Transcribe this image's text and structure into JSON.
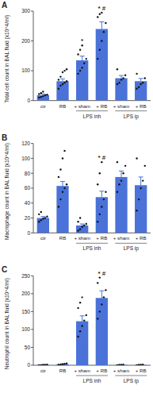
{
  "chart_data": [
    {
      "type": "bar",
      "title": "A",
      "y_label": "Total cell count in BAL fluid (x10^4/ml)",
      "categories": [
        "ctr",
        "RB",
        "+ sham",
        "+ RB",
        "+ sham",
        "+ RB"
      ],
      "group_labels": [
        null,
        null,
        "LPS inh",
        "LPS inh",
        "LPS ip",
        "LPS ip"
      ],
      "values": [
        18,
        65,
        135,
        240,
        75,
        65
      ],
      "errors": [
        4,
        8,
        14,
        24,
        9,
        9
      ],
      "points": [
        [
          10,
          12,
          15,
          18,
          20,
          22,
          25,
          30
        ],
        [
          40,
          50,
          55,
          60,
          65,
          70,
          80,
          95,
          100,
          105
        ],
        [
          90,
          100,
          110,
          125,
          140,
          155,
          170,
          185
        ],
        [
          140,
          170,
          200,
          230,
          260,
          280,
          290,
          295
        ],
        [
          55,
          60,
          70,
          75,
          85,
          105
        ],
        [
          40,
          45,
          55,
          60,
          75,
          90
        ]
      ],
      "significance": [
        null,
        null,
        "*",
        "* #",
        null,
        null
      ],
      "color": "#4a72d8",
      "ylim": [
        0,
        300
      ],
      "yticks": [
        0,
        100,
        200,
        300
      ]
    },
    {
      "type": "bar",
      "title": "B",
      "y_label": "Macrophage count in BAL fluid (x10^4/ml)",
      "categories": [
        "ctr",
        "RB",
        "+ sham",
        "+ RB",
        "+ sham",
        "+ RB"
      ],
      "group_labels": [
        null,
        null,
        "LPS inh",
        "LPS inh",
        "LPS ip",
        "LPS ip"
      ],
      "values": [
        20,
        63,
        10,
        48,
        75,
        64
      ],
      "errors": [
        2,
        6,
        2,
        8,
        8,
        11
      ],
      "points": [
        [
          15,
          17,
          19,
          20,
          22,
          25,
          28
        ],
        [
          35,
          45,
          55,
          60,
          65,
          75,
          85,
          100,
          110
        ],
        [
          3,
          5,
          8,
          10,
          12,
          15,
          20
        ],
        [
          15,
          25,
          35,
          45,
          55,
          65,
          80,
          95
        ],
        [
          55,
          65,
          70,
          80,
          90,
          95
        ],
        [
          30,
          45,
          60,
          70,
          90,
          100
        ]
      ],
      "significance": [
        null,
        null,
        null,
        "* #",
        null,
        null
      ],
      "color": "#4a72d8",
      "ylim": [
        0,
        120
      ],
      "yticks": [
        0,
        20,
        40,
        60,
        80,
        100,
        120
      ]
    },
    {
      "type": "bar",
      "title": "C",
      "y_label": "Neutrophil count in BAL fluid (x10^4/ml)",
      "categories": [
        "ctr",
        "RB",
        "+ sham",
        "+ RB",
        "+ sham",
        "+ RB"
      ],
      "group_labels": [
        null,
        null,
        "LPS inh",
        "LPS inh",
        "LPS ip",
        "LPS ip"
      ],
      "values": [
        1,
        3,
        123,
        188,
        1,
        1
      ],
      "errors": [
        0.5,
        1,
        15,
        20,
        0.5,
        0.5
      ],
      "points": [
        [
          0,
          0,
          1,
          1,
          2
        ],
        [
          1,
          2,
          3,
          4,
          5
        ],
        [
          80,
          95,
          110,
          125,
          140,
          160,
          175
        ],
        [
          130,
          150,
          170,
          190,
          210,
          230,
          245
        ],
        [
          0,
          1,
          1,
          2
        ],
        [
          0,
          1,
          1,
          2
        ]
      ],
      "significance": [
        null,
        null,
        "*",
        "* #",
        null,
        null
      ],
      "color": "#4a72d8",
      "ylim": [
        0,
        250
      ],
      "yticks": [
        0,
        50,
        100,
        150,
        200,
        250
      ]
    }
  ]
}
